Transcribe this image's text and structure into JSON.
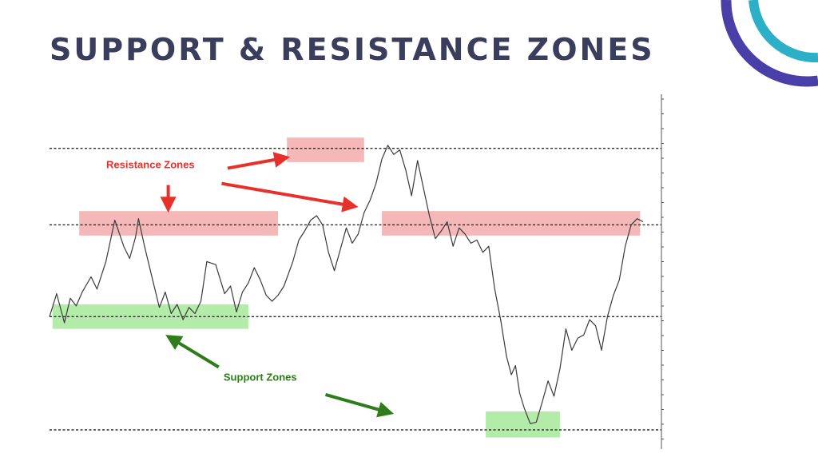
{
  "slide": {
    "title": "SUPPORT & RESISTANCE ZONES"
  },
  "colors": {
    "title": "#3a3d5c",
    "resistance": "#e8302a",
    "resistance_zone": "#f0a0a0",
    "support": "#2e7d1a",
    "support_zone": "#a6e89a",
    "price_line": "#3a3a3a",
    "level_line": "#2a2a2a",
    "logo_inner": "#2bb0c8",
    "logo_outer": "#4a3fa8"
  },
  "chart_data": {
    "type": "line",
    "title": "",
    "xlabel": "",
    "ylabel": "",
    "grid": false,
    "xlim": [
      0,
      100
    ],
    "ylim": [
      0,
      100
    ],
    "price_series": [
      [
        0,
        37
      ],
      [
        1.2,
        44.5
      ],
      [
        2.5,
        35
      ],
      [
        3.5,
        43
      ],
      [
        4.5,
        40.5
      ],
      [
        5.5,
        45
      ],
      [
        7,
        50
      ],
      [
        8,
        46
      ],
      [
        9.5,
        55
      ],
      [
        11,
        68.5
      ],
      [
        12.5,
        60
      ],
      [
        13.5,
        56
      ],
      [
        14.5,
        63
      ],
      [
        15,
        69
      ],
      [
        16,
        60
      ],
      [
        17.5,
        48
      ],
      [
        18.5,
        40
      ],
      [
        19.5,
        45
      ],
      [
        20.5,
        38
      ],
      [
        21.5,
        41
      ],
      [
        22.5,
        36
      ],
      [
        23.5,
        40
      ],
      [
        24.5,
        38
      ],
      [
        25.5,
        42
      ],
      [
        26.5,
        55
      ],
      [
        28,
        54
      ],
      [
        29.5,
        44.5
      ],
      [
        30.5,
        47
      ],
      [
        31.5,
        38.5
      ],
      [
        32.5,
        45
      ],
      [
        33.5,
        48
      ],
      [
        34.5,
        53
      ],
      [
        35.5,
        49
      ],
      [
        36.5,
        44
      ],
      [
        37.5,
        42
      ],
      [
        38.5,
        44
      ],
      [
        39.5,
        47
      ],
      [
        41,
        55
      ],
      [
        42,
        62
      ],
      [
        43,
        65
      ],
      [
        44,
        68.5
      ],
      [
        45,
        70
      ],
      [
        46,
        67
      ],
      [
        47,
        58
      ],
      [
        48,
        52
      ],
      [
        49,
        59
      ],
      [
        50,
        66
      ],
      [
        51,
        61
      ],
      [
        52,
        64
      ],
      [
        53,
        71
      ],
      [
        54,
        75
      ],
      [
        55,
        80.5
      ],
      [
        56,
        88.5
      ],
      [
        57,
        93
      ],
      [
        58,
        90
      ],
      [
        59,
        91.5
      ],
      [
        60,
        85
      ],
      [
        61,
        76.5
      ],
      [
        62,
        88
      ],
      [
        63,
        79
      ],
      [
        64,
        70
      ],
      [
        65,
        62.5
      ],
      [
        66,
        65
      ],
      [
        67,
        68
      ],
      [
        68,
        60
      ],
      [
        69,
        66
      ],
      [
        70,
        64
      ],
      [
        71,
        61
      ],
      [
        72,
        62
      ],
      [
        73,
        58
      ],
      [
        74,
        60
      ],
      [
        75,
        46
      ],
      [
        76,
        36
      ],
      [
        77,
        24
      ],
      [
        77.8,
        18
      ],
      [
        78.5,
        21
      ],
      [
        79.2,
        12
      ],
      [
        80,
        7
      ],
      [
        81,
        2
      ],
      [
        82,
        2.5
      ],
      [
        83,
        9
      ],
      [
        84,
        16
      ],
      [
        85,
        11
      ],
      [
        86,
        20
      ],
      [
        87,
        33
      ],
      [
        88,
        26
      ],
      [
        89,
        30
      ],
      [
        90,
        31
      ],
      [
        91,
        36
      ],
      [
        92,
        34
      ],
      [
        93,
        26
      ],
      [
        94,
        37
      ],
      [
        95,
        44
      ],
      [
        96,
        49
      ],
      [
        97,
        60
      ],
      [
        98,
        67
      ],
      [
        99,
        69
      ],
      [
        100,
        68
      ]
    ],
    "levels": [
      92,
      67,
      37,
      0
    ],
    "zones": [
      {
        "kind": "resistance",
        "x0": 5,
        "x1": 38.5,
        "y0": 63.5,
        "y1": 71.5
      },
      {
        "kind": "resistance",
        "x0": 40,
        "x1": 53,
        "y0": 87.5,
        "y1": 95.5
      },
      {
        "kind": "resistance",
        "x0": 56,
        "x1": 99.5,
        "y0": 63.5,
        "y1": 71.5
      },
      {
        "kind": "support",
        "x0": 0.5,
        "x1": 33.5,
        "y0": 33,
        "y1": 41
      },
      {
        "kind": "support",
        "x0": 73.5,
        "x1": 86,
        "y0": -2.5,
        "y1": 6
      }
    ],
    "annotations": [
      {
        "text": "Resistance Zones",
        "kind": "resistance",
        "x": 17,
        "y": 85.5
      },
      {
        "text": "Support Zones",
        "kind": "support",
        "x": 35.5,
        "y": 16
      }
    ],
    "arrows": [
      {
        "kind": "resistance",
        "from": [
          30,
          85.5
        ],
        "to": [
          40,
          89
        ]
      },
      {
        "kind": "resistance",
        "from": [
          20,
          80
        ],
        "to": [
          20,
          72
        ]
      },
      {
        "kind": "resistance",
        "from": [
          29,
          80.5
        ],
        "to": [
          51.5,
          73
        ]
      },
      {
        "kind": "support",
        "from": [
          28.5,
          20.5
        ],
        "to": [
          20,
          30.5
        ]
      },
      {
        "kind": "support",
        "from": [
          46.5,
          11.5
        ],
        "to": [
          57.5,
          5.5
        ]
      }
    ]
  }
}
